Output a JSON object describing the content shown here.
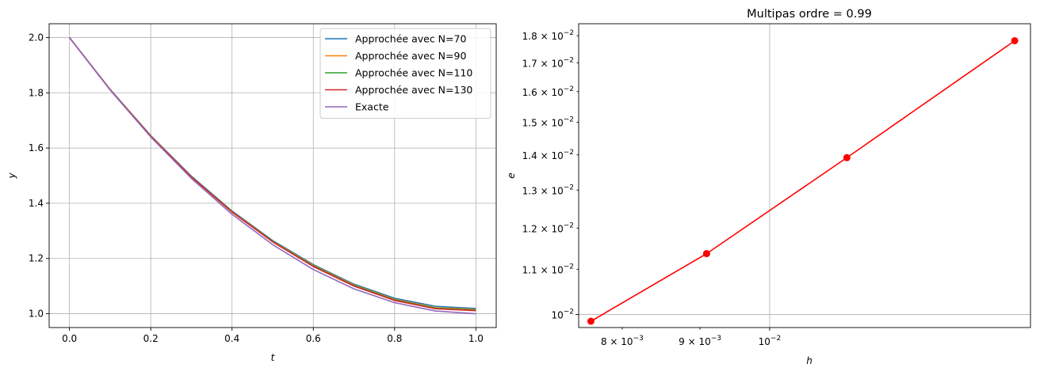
{
  "chart_data": [
    {
      "type": "line",
      "title": "",
      "xlabel": "t",
      "ylabel": "y",
      "xlim": [
        -0.05,
        1.05
      ],
      "ylim": [
        0.95,
        2.05
      ],
      "xticks": [
        0.0,
        0.2,
        0.4,
        0.6,
        0.8,
        1.0
      ],
      "xtick_labels": [
        "0.0",
        "0.2",
        "0.4",
        "0.6",
        "0.8",
        "1.0"
      ],
      "yticks": [
        1.0,
        1.2,
        1.4,
        1.6,
        1.8,
        2.0
      ],
      "ytick_labels": [
        "1.0",
        "1.2",
        "1.4",
        "1.6",
        "1.8",
        "2.0"
      ],
      "grid": true,
      "legend_position": "top-right",
      "series": [
        {
          "name": "Approchée avec N=70",
          "color": "#1f77b4",
          "x": [
            0.0,
            0.1,
            0.2,
            0.3,
            0.4,
            0.5,
            0.6,
            0.7,
            0.8,
            0.9,
            1.0
          ],
          "y": [
            2.0,
            1.812,
            1.645,
            1.498,
            1.372,
            1.265,
            1.178,
            1.107,
            1.056,
            1.027,
            1.019
          ]
        },
        {
          "name": "Approchée avec N=90",
          "color": "#ff7f0e",
          "x": [
            0.0,
            0.1,
            0.2,
            0.3,
            0.4,
            0.5,
            0.6,
            0.7,
            0.8,
            0.9,
            1.0
          ],
          "y": [
            2.0,
            1.812,
            1.644,
            1.496,
            1.37,
            1.262,
            1.175,
            1.104,
            1.052,
            1.022,
            1.015
          ]
        },
        {
          "name": "Approchée avec N=110",
          "color": "#2ca02c",
          "x": [
            0.0,
            0.1,
            0.2,
            0.3,
            0.4,
            0.5,
            0.6,
            0.7,
            0.8,
            0.9,
            1.0
          ],
          "y": [
            2.0,
            1.812,
            1.644,
            1.496,
            1.369,
            1.261,
            1.173,
            1.102,
            1.05,
            1.02,
            1.013
          ]
        },
        {
          "name": "Approchée avec N=130",
          "color": "#d62728",
          "x": [
            0.0,
            0.1,
            0.2,
            0.3,
            0.4,
            0.5,
            0.6,
            0.7,
            0.8,
            0.9,
            1.0
          ],
          "y": [
            2.0,
            1.811,
            1.643,
            1.495,
            1.368,
            1.26,
            1.171,
            1.1,
            1.048,
            1.018,
            1.011
          ]
        },
        {
          "name": "Exacte",
          "color": "#9467bd",
          "x": [
            0.0,
            0.1,
            0.2,
            0.3,
            0.4,
            0.5,
            0.6,
            0.7,
            0.8,
            0.9,
            1.0
          ],
          "y": [
            2.0,
            1.81,
            1.64,
            1.49,
            1.36,
            1.25,
            1.16,
            1.09,
            1.04,
            1.01,
            1.0
          ]
        }
      ]
    },
    {
      "type": "line",
      "title": "Multipas ordre = 0.99",
      "xlabel": "h",
      "ylabel": "e",
      "xscale": "log",
      "yscale": "log",
      "xlim": [
        0.00749,
        0.01484
      ],
      "ylim": [
        0.00973,
        0.01846
      ],
      "xticks": [
        0.008,
        0.009,
        0.01
      ],
      "xtick_labels": [
        {
          "mantissa": "8 × 10",
          "exp": "−3"
        },
        {
          "mantissa": "9 × 10",
          "exp": "−3"
        },
        {
          "mantissa": "10",
          "exp": "−2"
        }
      ],
      "yticks": [
        0.01,
        0.011,
        0.012,
        0.013,
        0.014,
        0.015,
        0.016,
        0.017,
        0.018
      ],
      "ytick_labels": [
        {
          "mantissa": "10",
          "exp": "−2"
        },
        {
          "mantissa": "1.1 × 10",
          "exp": "−2"
        },
        {
          "mantissa": "1.2 × 10",
          "exp": "−2"
        },
        {
          "mantissa": "1.3 × 10",
          "exp": "−2"
        },
        {
          "mantissa": "1.4 × 10",
          "exp": "−2"
        },
        {
          "mantissa": "1.5 × 10",
          "exp": "−2"
        },
        {
          "mantissa": "1.6 × 10",
          "exp": "−2"
        },
        {
          "mantissa": "1.7 × 10",
          "exp": "−2"
        },
        {
          "mantissa": "1.8 × 10",
          "exp": "−2"
        }
      ],
      "grid": true,
      "series": [
        {
          "name": "",
          "color": "#ff0000",
          "marker": "circle",
          "x": [
            0.00763,
            0.00909,
            0.01124,
            0.01449
          ],
          "y": [
            0.00986,
            0.01137,
            0.01392,
            0.01781
          ]
        }
      ]
    }
  ]
}
